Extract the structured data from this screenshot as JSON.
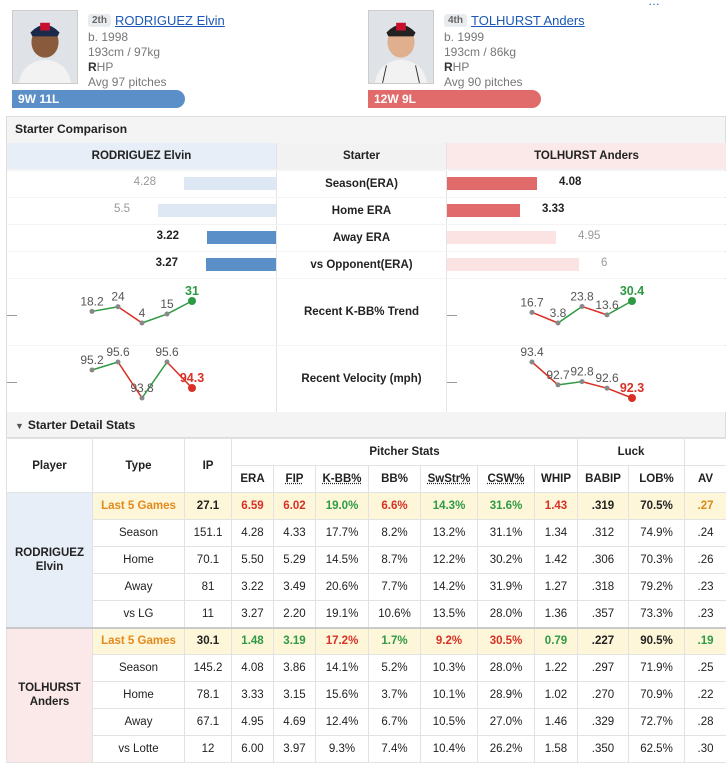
{
  "top_link": "…",
  "players": [
    {
      "rank": "2th",
      "name": "RODRIGUEZ Elvin",
      "born": "b. 1998",
      "body": "193cm / 97kg",
      "hand_bold": "R",
      "hand_rest": "HP",
      "avg_pitches": "Avg 97 pitches",
      "record": "9W 11L"
    },
    {
      "rank": "4th",
      "name": "TOLHURST Anders",
      "born": "b. 1999",
      "body": "193cm / 86kg",
      "hand_bold": "R",
      "hand_rest": "HP",
      "avg_pitches": "Avg 90 pitches",
      "record": "12W 9L"
    }
  ],
  "comparison": {
    "title": "Starter Comparison",
    "left_header": "RODRIGUEZ Elvin",
    "mid_header": "Starter",
    "right_header": "TOLHURST Anders",
    "rows": [
      {
        "label": "Season(ERA)",
        "left": "4.28",
        "right": "4.08",
        "left_num": 4.28,
        "right_num": 4.08,
        "better": "right"
      },
      {
        "label": "Home ERA",
        "left": "5.5",
        "right": "3.33",
        "left_num": 5.5,
        "right_num": 3.33,
        "better": "right"
      },
      {
        "label": "Away ERA",
        "left": "3.22",
        "right": "4.95",
        "left_num": 3.22,
        "right_num": 4.95,
        "better": "left"
      },
      {
        "label": "vs Opponent(ERA)",
        "left": "3.27",
        "right": "6",
        "left_num": 3.27,
        "right_num": 6,
        "better": "left"
      }
    ],
    "kbb_label": "Recent K-BB% Trend",
    "kbb_left": [
      "18.2",
      "24",
      "4",
      "15",
      "31"
    ],
    "kbb_right": [
      "16.7",
      "3.8",
      "23.8",
      "13.6",
      "30.4"
    ],
    "velo_label": "Recent Velocity (mph)",
    "velo_left": [
      "95.2",
      "95.6",
      "93.8",
      "95.6",
      "94.3"
    ],
    "velo_right": [
      "93.4",
      "92.7",
      "92.8",
      "92.6",
      "92.3"
    ]
  },
  "detail": {
    "title": "Starter Detail Stats",
    "headers": {
      "player": "Player",
      "type": "Type",
      "ip": "IP",
      "pitcher_stats": "Pitcher Stats",
      "luck": "Luck",
      "era": "ERA",
      "fip": "FIP",
      "kbb": "K-BB%",
      "bb": "BB%",
      "swstr": "SwStr%",
      "csw": "CSW%",
      "whip": "WHIP",
      "babip": "BABIP",
      "lob": "LOB%",
      "av": "AV"
    },
    "groups": [
      {
        "player": "RODRIGUEZ Elvin",
        "rows": [
          {
            "type": "Last 5 Games",
            "ip": "27.1",
            "era": "6.59",
            "fip": "6.02",
            "kbb": "19.0%",
            "bb": "6.6%",
            "swstr": "14.3%",
            "csw": "31.6%",
            "whip": "1.43",
            "babip": ".319",
            "lob": "70.5%",
            "av": ".27"
          },
          {
            "type": "Season",
            "ip": "151.1",
            "era": "4.28",
            "fip": "4.33",
            "kbb": "17.7%",
            "bb": "8.2%",
            "swstr": "13.2%",
            "csw": "31.1%",
            "whip": "1.34",
            "babip": ".312",
            "lob": "74.9%",
            "av": ".24"
          },
          {
            "type": "Home",
            "ip": "70.1",
            "era": "5.50",
            "fip": "5.29",
            "kbb": "14.5%",
            "bb": "8.7%",
            "swstr": "12.2%",
            "csw": "30.2%",
            "whip": "1.42",
            "babip": ".306",
            "lob": "70.3%",
            "av": ".26"
          },
          {
            "type": "Away",
            "ip": "81",
            "era": "3.22",
            "fip": "3.49",
            "kbb": "20.6%",
            "bb": "7.7%",
            "swstr": "14.2%",
            "csw": "31.9%",
            "whip": "1.27",
            "babip": ".318",
            "lob": "79.2%",
            "av": ".23"
          },
          {
            "type": "vs LG",
            "ip": "11",
            "era": "3.27",
            "fip": "2.20",
            "kbb": "19.1%",
            "bb": "10.6%",
            "swstr": "13.5%",
            "csw": "28.0%",
            "whip": "1.36",
            "babip": ".357",
            "lob": "73.3%",
            "av": ".23"
          }
        ]
      },
      {
        "player": "TOLHURST Anders",
        "rows": [
          {
            "type": "Last 5 Games",
            "ip": "30.1",
            "era": "1.48",
            "fip": "3.19",
            "kbb": "17.2%",
            "bb": "1.7%",
            "swstr": "9.2%",
            "csw": "30.5%",
            "whip": "0.79",
            "babip": ".227",
            "lob": "90.5%",
            "av": ".19"
          },
          {
            "type": "Season",
            "ip": "145.2",
            "era": "4.08",
            "fip": "3.86",
            "kbb": "14.1%",
            "bb": "5.2%",
            "swstr": "10.3%",
            "csw": "28.0%",
            "whip": "1.22",
            "babip": ".297",
            "lob": "71.9%",
            "av": ".25"
          },
          {
            "type": "Home",
            "ip": "78.1",
            "era": "3.33",
            "fip": "3.15",
            "kbb": "15.6%",
            "bb": "3.7%",
            "swstr": "10.1%",
            "csw": "28.9%",
            "whip": "1.02",
            "babip": ".270",
            "lob": "70.9%",
            "av": ".22"
          },
          {
            "type": "Away",
            "ip": "67.1",
            "era": "4.95",
            "fip": "4.69",
            "kbb": "12.4%",
            "bb": "6.7%",
            "swstr": "10.5%",
            "csw": "27.0%",
            "whip": "1.46",
            "babip": ".329",
            "lob": "72.7%",
            "av": ".28"
          },
          {
            "type": "vs Lotte",
            "ip": "12",
            "era": "6.00",
            "fip": "3.97",
            "kbb": "9.3%",
            "bb": "7.4%",
            "swstr": "10.4%",
            "csw": "26.2%",
            "whip": "1.58",
            "babip": ".350",
            "lob": "62.5%",
            "av": ".30"
          }
        ]
      }
    ],
    "highlight_colors": {
      "0": {
        "era": "red",
        "fip": "red",
        "kbb": "green",
        "bb": "red",
        "swstr": "green",
        "csw": "green",
        "whip": "red",
        "av": "orange"
      },
      "1": {
        "era": "green",
        "fip": "green",
        "kbb": "red",
        "bb": "green",
        "swstr": "red",
        "csw": "red",
        "whip": "green",
        "av": "green"
      }
    }
  },
  "colors": {
    "blue": "#5b8fc7",
    "light_blue": "#dde8f4",
    "red": "#e16b6b",
    "light_red": "#fbe3e3",
    "spark_gray": "#888888",
    "spark_green": "#2e9a44",
    "spark_red": "#d93025"
  }
}
